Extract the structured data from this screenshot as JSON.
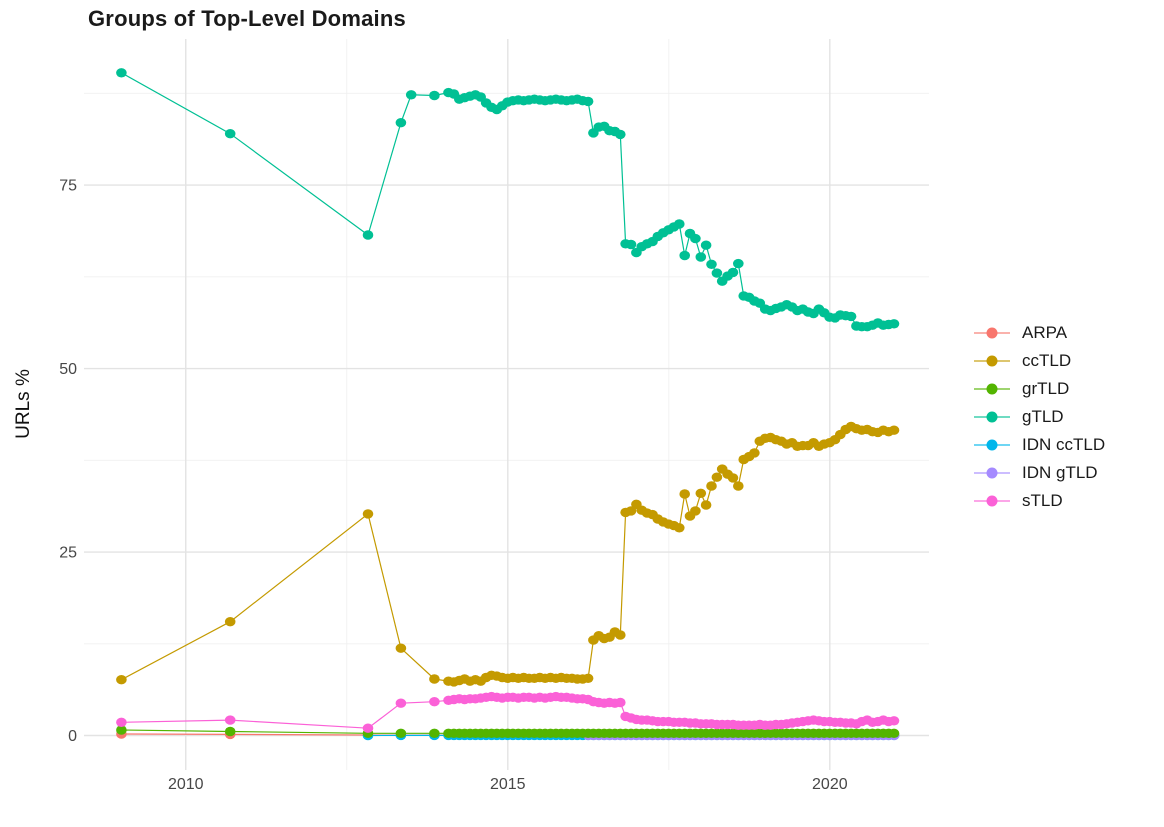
{
  "chart_data": {
    "type": "line",
    "title": "Groups of Top-Level Domains",
    "xlabel": "",
    "ylabel": "URLs %",
    "grid": true,
    "legend_position": "right",
    "xlim": [
      2008.42,
      2021.54
    ],
    "ylim": [
      -4.7,
      94.9
    ],
    "x_ticks": [
      {
        "label": "2010",
        "year": 2010
      },
      {
        "label": "2015",
        "year": 2015
      },
      {
        "label": "2020",
        "year": 2020
      }
    ],
    "x_minor": [
      2012.5,
      2017.5
    ],
    "y_ticks": [
      {
        "label": "0",
        "value": 0
      },
      {
        "label": "25",
        "value": 25
      },
      {
        "label": "50",
        "value": 50
      },
      {
        "label": "75",
        "value": 75
      }
    ],
    "y_minor": [
      12.5,
      37.5,
      62.5,
      87.5
    ],
    "dense_x_step": 0.08333,
    "draw_order": [
      0,
      4,
      5,
      2,
      1,
      3,
      6
    ],
    "series": [
      {
        "name": "ARPA",
        "color": "#F8766D",
        "sparse": [
          [
            2009,
            0.2
          ],
          [
            2010.69,
            0.15
          ],
          [
            2012.83,
            0.07
          ],
          [
            2013.34,
            0.05
          ],
          [
            2013.86,
            0.05
          ]
        ],
        "flat": {
          "from": 2014.08,
          "to": 2021,
          "value": 0.05
        }
      },
      {
        "name": "ccTLD",
        "color": "#C49A00",
        "sparse": [
          [
            2009,
            7.6
          ],
          [
            2010.69,
            15.5
          ],
          [
            2012.83,
            30.2
          ],
          [
            2013.34,
            11.9
          ],
          [
            2013.86,
            7.7
          ]
        ],
        "dense": {
          "from": 2014.08,
          "y": [
            7.4,
            7.3,
            7.5,
            7.7,
            7.4,
            7.6,
            7.4,
            7.9,
            8.2,
            8.1,
            7.9,
            7.8,
            7.9,
            7.8,
            7.9,
            7.8,
            7.8,
            7.9,
            7.8,
            7.9,
            7.8,
            7.9,
            7.8,
            7.8,
            7.7,
            7.7,
            7.8,
            13.0,
            13.6,
            13.2,
            13.4,
            14.1,
            13.7,
            30.4,
            30.6,
            31.5,
            30.7,
            30.3,
            30.1,
            29.5,
            29.1,
            28.8,
            28.6,
            28.3,
            32.9,
            29.9,
            30.6,
            33.0,
            31.4,
            34.0,
            35.2,
            36.3,
            35.6,
            35.1,
            34.0,
            37.6,
            38.0,
            38.5,
            40.1,
            40.5,
            40.6,
            40.3,
            40.1,
            39.7,
            39.9,
            39.4,
            39.5,
            39.5,
            39.9,
            39.4,
            39.7,
            39.9,
            40.3,
            41.0,
            41.7,
            42.1,
            41.8,
            41.6,
            41.7,
            41.4,
            41.3,
            41.6,
            41.4,
            41.6
          ]
        }
      },
      {
        "name": "grTLD",
        "color": "#53B400",
        "sparse": [
          [
            2009,
            0.75
          ],
          [
            2010.69,
            0.55
          ],
          [
            2012.83,
            0.3
          ],
          [
            2013.34,
            0.3
          ],
          [
            2013.86,
            0.3
          ]
        ],
        "flat": {
          "from": 2014.08,
          "to": 2021,
          "value": 0.3
        }
      },
      {
        "name": "gTLD",
        "color": "#00C094",
        "sparse": [
          [
            2009,
            90.3
          ],
          [
            2010.69,
            82.0
          ],
          [
            2012.83,
            68.2
          ],
          [
            2013.34,
            83.5
          ],
          [
            2013.5,
            87.3
          ],
          [
            2013.86,
            87.2
          ]
        ],
        "dense": {
          "from": 2014.08,
          "y": [
            87.6,
            87.4,
            86.7,
            86.9,
            87.1,
            87.3,
            87.0,
            86.2,
            85.6,
            85.3,
            85.8,
            86.3,
            86.5,
            86.6,
            86.5,
            86.6,
            86.7,
            86.6,
            86.5,
            86.6,
            86.7,
            86.6,
            86.5,
            86.6,
            86.7,
            86.5,
            86.4,
            82.1,
            82.9,
            83.0,
            82.4,
            82.3,
            81.9,
            67.0,
            66.9,
            65.8,
            66.6,
            67.0,
            67.3,
            68.0,
            68.5,
            68.9,
            69.3,
            69.7,
            65.4,
            68.4,
            67.7,
            65.2,
            66.8,
            64.2,
            63.0,
            61.9,
            62.6,
            63.1,
            64.3,
            59.9,
            59.7,
            59.2,
            58.9,
            58.1,
            57.9,
            58.2,
            58.4,
            58.7,
            58.4,
            57.9,
            58.1,
            57.7,
            57.5,
            58.1,
            57.6,
            57.0,
            56.9,
            57.3,
            57.2,
            57.1,
            55.8,
            55.7,
            55.7,
            55.9,
            56.2,
            55.9,
            56.0,
            56.1
          ]
        }
      },
      {
        "name": "IDN ccTLD",
        "color": "#00B6EB",
        "sparse": [
          [
            2012.83,
            0.0
          ],
          [
            2013.34,
            0.02
          ],
          [
            2013.86,
            0.02
          ]
        ],
        "flat": {
          "from": 2014.08,
          "to": 2021,
          "value": 0.02
        }
      },
      {
        "name": "IDN gTLD",
        "color": "#A58AFF",
        "flat": {
          "from": 2016.25,
          "to": 2021,
          "value": 0.02
        }
      },
      {
        "name": "sTLD",
        "color": "#FB61D7",
        "sparse": [
          [
            2009,
            1.8
          ],
          [
            2010.69,
            2.1
          ],
          [
            2012.83,
            1.0
          ],
          [
            2013.34,
            4.4
          ],
          [
            2013.86,
            4.6
          ]
        ],
        "dense": {
          "from": 2014.08,
          "y": [
            4.8,
            4.9,
            5.0,
            4.9,
            5.0,
            5.0,
            5.1,
            5.2,
            5.3,
            5.2,
            5.1,
            5.2,
            5.2,
            5.1,
            5.2,
            5.2,
            5.1,
            5.2,
            5.1,
            5.2,
            5.3,
            5.2,
            5.2,
            5.1,
            5.0,
            5.0,
            4.9,
            4.6,
            4.5,
            4.4,
            4.5,
            4.4,
            4.5,
            2.6,
            2.4,
            2.2,
            2.1,
            2.1,
            2.0,
            1.9,
            1.9,
            1.9,
            1.8,
            1.8,
            1.8,
            1.7,
            1.7,
            1.6,
            1.6,
            1.6,
            1.5,
            1.5,
            1.5,
            1.5,
            1.4,
            1.4,
            1.4,
            1.4,
            1.5,
            1.4,
            1.4,
            1.5,
            1.5,
            1.6,
            1.7,
            1.8,
            1.9,
            2.0,
            2.1,
            2.0,
            1.9,
            1.9,
            1.8,
            1.8,
            1.7,
            1.7,
            1.6,
            1.9,
            2.1,
            1.8,
            1.9,
            2.1,
            1.9,
            2.0
          ]
        }
      }
    ]
  }
}
